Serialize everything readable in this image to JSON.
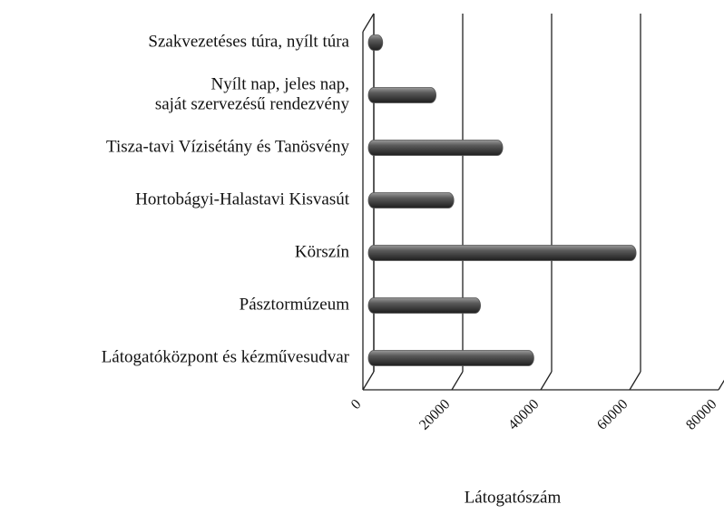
{
  "chart_data": {
    "type": "bar",
    "orientation": "horizontal",
    "categories": [
      "Szakvezetéses túra, nyílt túra",
      [
        "Nyílt nap, jeles nap,",
        "saját szervezésű rendezvény"
      ],
      "Tisza-tavi Vízisétány és Tanösvény",
      "Hortobágyi-Halastavi Kisvasút",
      "Körszín",
      "Pásztormúzeum",
      "Látogatóközpont és kézművesudvar"
    ],
    "values": [
      2000,
      14000,
      29000,
      18000,
      59000,
      24000,
      36000
    ],
    "color": "#555555",
    "xlabel": "Látogatószám",
    "xlim": [
      0,
      80000
    ],
    "xticks": [
      0,
      20000,
      40000,
      60000,
      80000
    ],
    "grid": true
  }
}
